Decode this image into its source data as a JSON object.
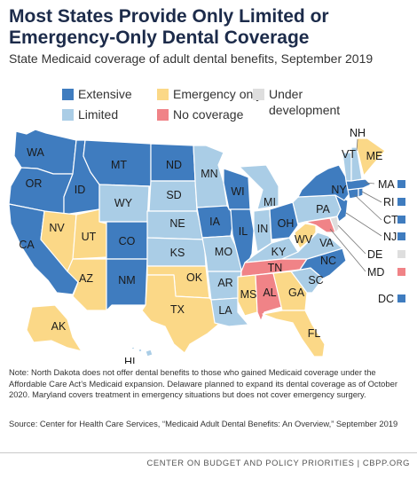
{
  "title": "Most States Provide Only Limited or Emergency-Only Dental Coverage",
  "subtitle": "State Medicaid coverage of adult dental benefits, September 2019",
  "legend": {
    "extensive": "Extensive",
    "emergency": "Emergency only",
    "under_dev_1": "Under",
    "under_dev_2": "development",
    "limited": "Limited",
    "none": "No coverage"
  },
  "colors": {
    "extensive": "#3f7cbf",
    "limited": "#aacde6",
    "emergency": "#fbd887",
    "none": "#f08387",
    "under_development": "#dedede",
    "border": "#ffffff"
  },
  "states": [
    {
      "abbr": "WA",
      "category": "extensive"
    },
    {
      "abbr": "OR",
      "category": "extensive"
    },
    {
      "abbr": "CA",
      "category": "extensive"
    },
    {
      "abbr": "ID",
      "category": "extensive"
    },
    {
      "abbr": "MT",
      "category": "extensive"
    },
    {
      "abbr": "ND",
      "category": "extensive"
    },
    {
      "abbr": "CO",
      "category": "extensive"
    },
    {
      "abbr": "NM",
      "category": "extensive"
    },
    {
      "abbr": "IA",
      "category": "extensive"
    },
    {
      "abbr": "WI",
      "category": "extensive"
    },
    {
      "abbr": "IL",
      "category": "extensive"
    },
    {
      "abbr": "OH",
      "category": "extensive"
    },
    {
      "abbr": "NC",
      "category": "extensive"
    },
    {
      "abbr": "NY",
      "category": "extensive"
    },
    {
      "abbr": "MA",
      "category": "extensive"
    },
    {
      "abbr": "RI",
      "category": "extensive"
    },
    {
      "abbr": "CT",
      "category": "extensive"
    },
    {
      "abbr": "NJ",
      "category": "extensive"
    },
    {
      "abbr": "DC",
      "category": "extensive"
    },
    {
      "abbr": "NV",
      "category": "emergency"
    },
    {
      "abbr": "UT",
      "category": "emergency"
    },
    {
      "abbr": "AZ",
      "category": "emergency"
    },
    {
      "abbr": "OK",
      "category": "emergency"
    },
    {
      "abbr": "TX",
      "category": "emergency"
    },
    {
      "abbr": "MS",
      "category": "emergency"
    },
    {
      "abbr": "GA",
      "category": "emergency"
    },
    {
      "abbr": "FL",
      "category": "emergency"
    },
    {
      "abbr": "WV",
      "category": "emergency"
    },
    {
      "abbr": "ME",
      "category": "emergency"
    },
    {
      "abbr": "AK",
      "category": "emergency"
    },
    {
      "abbr": "TN",
      "category": "none"
    },
    {
      "abbr": "AL",
      "category": "none"
    },
    {
      "abbr": "MD",
      "category": "none"
    },
    {
      "abbr": "DE",
      "category": "under_development"
    },
    {
      "abbr": "WY",
      "category": "limited"
    },
    {
      "abbr": "SD",
      "category": "limited"
    },
    {
      "abbr": "NE",
      "category": "limited"
    },
    {
      "abbr": "KS",
      "category": "limited"
    },
    {
      "abbr": "MN",
      "category": "limited"
    },
    {
      "abbr": "MO",
      "category": "limited"
    },
    {
      "abbr": "AR",
      "category": "limited"
    },
    {
      "abbr": "LA",
      "category": "limited"
    },
    {
      "abbr": "MI",
      "category": "limited"
    },
    {
      "abbr": "IN",
      "category": "limited"
    },
    {
      "abbr": "KY",
      "category": "limited"
    },
    {
      "abbr": "PA",
      "category": "limited"
    },
    {
      "abbr": "VA",
      "category": "limited"
    },
    {
      "abbr": "SC",
      "category": "limited"
    },
    {
      "abbr": "VT",
      "category": "limited"
    },
    {
      "abbr": "NH",
      "category": "limited"
    },
    {
      "abbr": "HI",
      "category": "limited"
    }
  ],
  "note": "Note: North Dakota does not offer dental benefits to those who gained Medicaid coverage under the Affordable Care Act’s Medicaid expansion. Delaware planned to expand its dental coverage as of October 2020. Maryland covers treatment in emergency situations but does not cover emergency surgery.",
  "source": "Source: Center for Health Care Services, “Medicaid Adult Dental Benefits: An Overview,” September 2019",
  "footer": "CENTER ON BUDGET AND POLICY PRIORITIES | CBPP.ORG"
}
